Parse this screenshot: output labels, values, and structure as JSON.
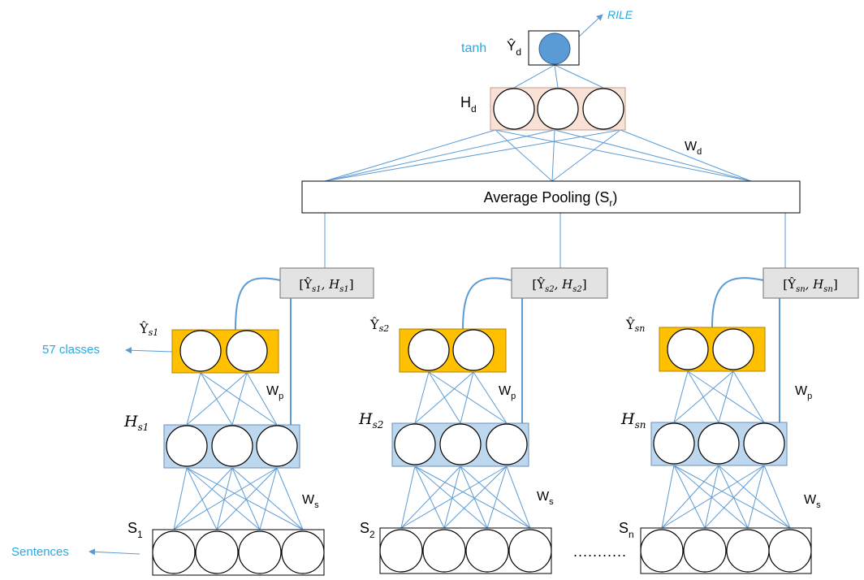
{
  "colors": {
    "edge": "#5b9bd5",
    "cyan_text": "#29a9e0",
    "output_node": "#5b9bd5",
    "hidden_doc_fill": "#f9e1d6",
    "hidden_sent_fill": "#bdd7ee",
    "pred_fill": "#ffc000",
    "concat_fill": "#e3e3e3"
  },
  "top": {
    "activation": "tanh",
    "output_label": "Ŷ",
    "output_sub": "d",
    "target": "RILE",
    "hidden_label": "H",
    "hidden_sub": "d",
    "weight_label": "W",
    "weight_sub": "d"
  },
  "pooling": {
    "text": "Average Pooling (S",
    "sub": "r",
    "close": ")"
  },
  "branches": [
    {
      "concat_pre": "[Ŷ",
      "concat_s1": "s1",
      "concat_mid": ", H",
      "concat_s2": "s1",
      "concat_post": "]",
      "pred_label": "Ŷ",
      "pred_sub": "s1",
      "hidden_label": "H",
      "hidden_sub": "s1",
      "wp_label": "W",
      "wp_sub": "p",
      "ws_label": "W",
      "ws_sub": "s",
      "sent_label": "S",
      "sent_sub": "1"
    },
    {
      "concat_pre": "[Ŷ",
      "concat_s1": "s2",
      "concat_mid": ", H",
      "concat_s2": "s2",
      "concat_post": "]",
      "pred_label": "Ŷ",
      "pred_sub": "s2",
      "hidden_label": "H",
      "hidden_sub": "s2",
      "wp_label": "W",
      "wp_sub": "p",
      "ws_label": "W",
      "ws_sub": "s",
      "sent_label": "S",
      "sent_sub": "2"
    },
    {
      "concat_pre": "[Ŷ",
      "concat_s1": "sn",
      "concat_mid": ", H",
      "concat_s2": "sn",
      "concat_post": "]",
      "pred_label": "Ŷ",
      "pred_sub": "sn",
      "hidden_label": "H",
      "hidden_sub": "sn",
      "wp_label": "W",
      "wp_sub": "p",
      "ws_label": "W",
      "ws_sub": "s",
      "sent_label": "S",
      "sent_sub": "n"
    }
  ],
  "side_labels": {
    "classes": "57 classes",
    "sentences": "Sentences"
  },
  "ellipsis": "..........."
}
